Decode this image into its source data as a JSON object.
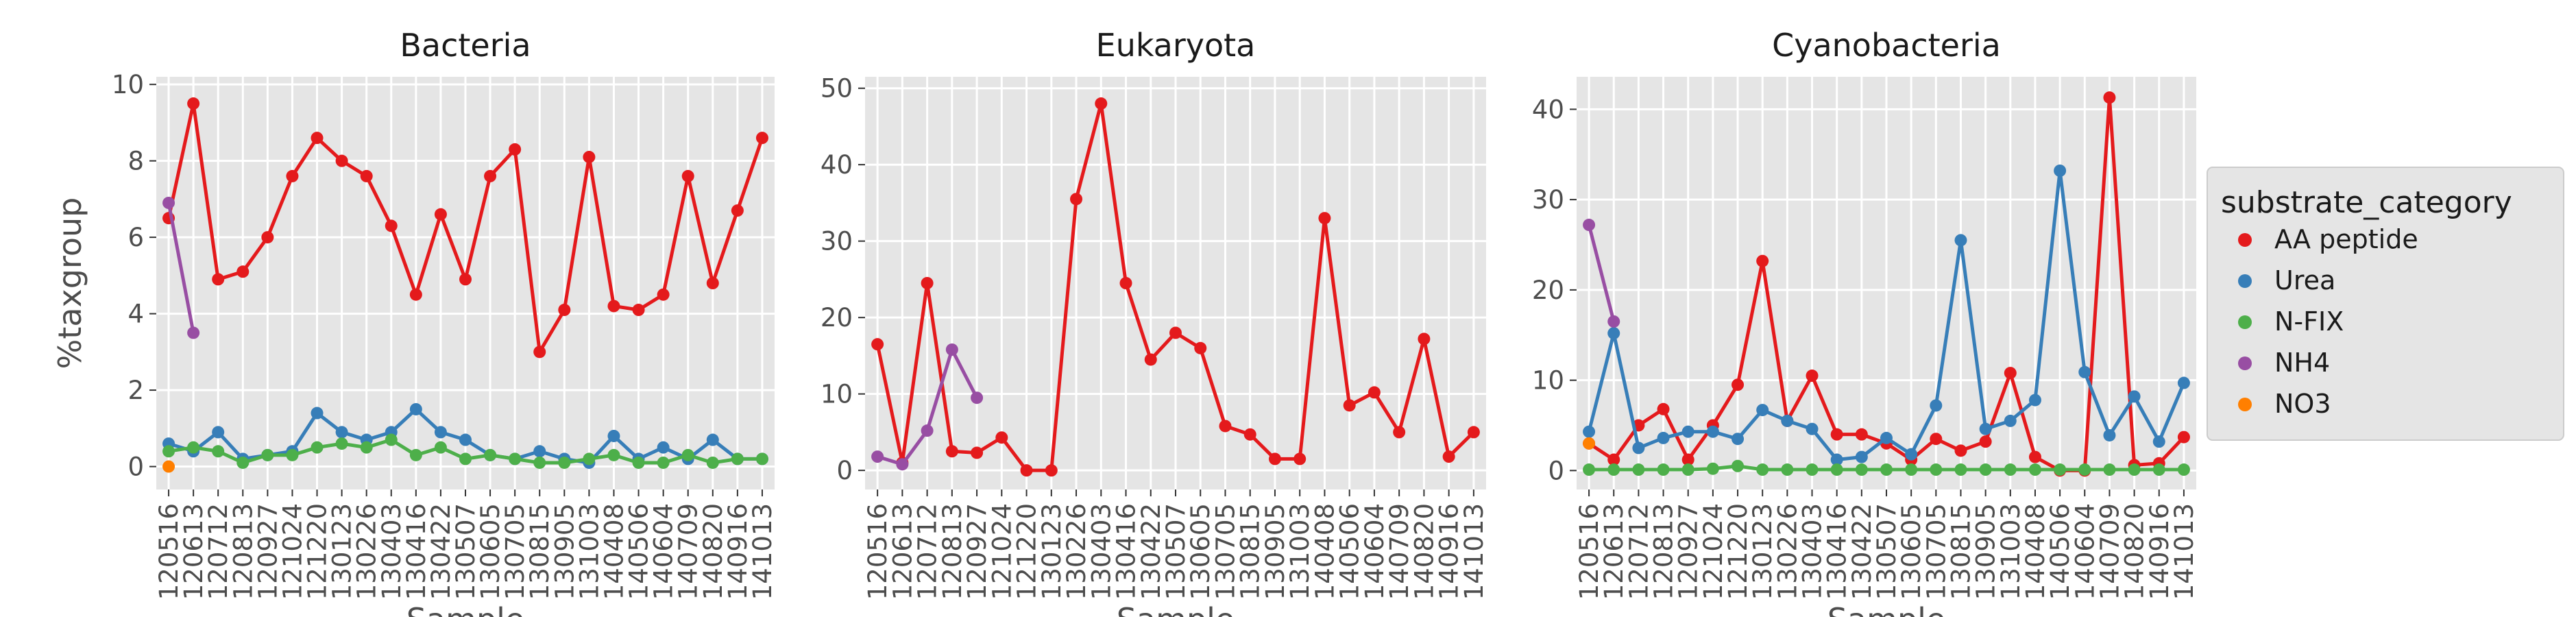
{
  "chart_data": [
    {
      "type": "line",
      "title": "Bacteria",
      "ylabel": "%taxgroup",
      "xlabel": "Sample",
      "ylim": [
        -0.6,
        10.2
      ],
      "yticks": [
        0,
        2,
        4,
        6,
        8,
        10
      ],
      "grid": true,
      "categories": [
        "120516",
        "120613",
        "120712",
        "120813",
        "120927",
        "121024",
        "121220",
        "130123",
        "130226",
        "130403",
        "130416",
        "130422",
        "130507",
        "130605",
        "130705",
        "130815",
        "130905",
        "131003",
        "140408",
        "140506",
        "140604",
        "140709",
        "140820",
        "140916",
        "141013"
      ],
      "series": [
        {
          "name": "AA peptide",
          "x": [
            0,
            1,
            2,
            3,
            4,
            5,
            6,
            7,
            8,
            9,
            10,
            11,
            12,
            13,
            14,
            15,
            16,
            17,
            18,
            19,
            20,
            21,
            22,
            23,
            24
          ],
          "values": [
            6.5,
            9.5,
            4.9,
            5.1,
            6.0,
            7.6,
            8.6,
            8.0,
            7.6,
            6.3,
            4.5,
            6.6,
            4.9,
            7.6,
            8.3,
            3.0,
            4.1,
            8.1,
            4.2,
            4.1,
            4.5,
            7.6,
            4.8,
            6.7,
            8.6
          ]
        },
        {
          "name": "Urea",
          "x": [
            0,
            1,
            2,
            3,
            4,
            5,
            6,
            7,
            8,
            9,
            10,
            11,
            12,
            13,
            14,
            15,
            16,
            17,
            18,
            19,
            20,
            21,
            22,
            23,
            24
          ],
          "values": [
            0.6,
            0.4,
            0.9,
            0.2,
            0.3,
            0.4,
            1.4,
            0.9,
            0.7,
            0.9,
            1.5,
            0.9,
            0.7,
            0.3,
            0.2,
            0.4,
            0.2,
            0.1,
            0.8,
            0.2,
            0.5,
            0.2,
            0.7,
            0.2,
            0.2
          ]
        },
        {
          "name": "N-FIX",
          "x": [
            0,
            1,
            2,
            3,
            4,
            5,
            6,
            7,
            8,
            9,
            10,
            11,
            12,
            13,
            14,
            15,
            16,
            17,
            18,
            19,
            20,
            21,
            22,
            23,
            24
          ],
          "values": [
            0.4,
            0.5,
            0.4,
            0.1,
            0.3,
            0.3,
            0.5,
            0.6,
            0.5,
            0.7,
            0.3,
            0.5,
            0.2,
            0.3,
            0.2,
            0.1,
            0.1,
            0.2,
            0.3,
            0.1,
            0.1,
            0.3,
            0.1,
            0.2,
            0.2
          ]
        },
        {
          "name": "NH4",
          "x": [
            0,
            1
          ],
          "values": [
            6.9,
            3.5
          ]
        },
        {
          "name": "NO3",
          "x": [
            0
          ],
          "values": [
            0.0
          ]
        }
      ]
    },
    {
      "type": "line",
      "title": "Eukaryota",
      "xlabel": "Sample",
      "ylim": [
        -2.5,
        51.5
      ],
      "yticks": [
        0,
        10,
        20,
        30,
        40,
        50
      ],
      "grid": true,
      "categories": [
        "120516",
        "120613",
        "120712",
        "120813",
        "120927",
        "121024",
        "121220",
        "130123",
        "130226",
        "130403",
        "130416",
        "130422",
        "130507",
        "130605",
        "130705",
        "130815",
        "130905",
        "131003",
        "140408",
        "140506",
        "140604",
        "140709",
        "140820",
        "140916",
        "141013"
      ],
      "series": [
        {
          "name": "AA peptide",
          "x": [
            0,
            1,
            2,
            3,
            4,
            5,
            6,
            7,
            8,
            9,
            10,
            11,
            12,
            13,
            14,
            15,
            16,
            17,
            18,
            19,
            20,
            21,
            22,
            23,
            24
          ],
          "values": [
            16.5,
            1.0,
            24.5,
            2.5,
            2.3,
            4.3,
            0.0,
            0.0,
            35.5,
            48.0,
            24.5,
            14.5,
            18.0,
            16.0,
            5.8,
            4.7,
            1.5,
            1.5,
            33.0,
            8.5,
            10.2,
            5.0,
            17.2,
            1.8,
            5.0
          ]
        },
        {
          "name": "NH4",
          "x": [
            0,
            1,
            2,
            3,
            4
          ],
          "values": [
            1.8,
            0.8,
            5.2,
            15.8,
            9.5
          ]
        }
      ]
    },
    {
      "type": "line",
      "title": "Cyanobacteria",
      "xlabel": "Sample",
      "ylim": [
        -2.1,
        43.6
      ],
      "yticks": [
        0,
        10,
        20,
        30,
        40
      ],
      "grid": true,
      "categories": [
        "120516",
        "120613",
        "120712",
        "120813",
        "120927",
        "121024",
        "121220",
        "130123",
        "130226",
        "130403",
        "130416",
        "130422",
        "130507",
        "130605",
        "130705",
        "130815",
        "130905",
        "131003",
        "140408",
        "140506",
        "140604",
        "140709",
        "140820",
        "140916",
        "141013"
      ],
      "series": [
        {
          "name": "AA peptide",
          "x": [
            0,
            1,
            2,
            3,
            4,
            5,
            6,
            7,
            8,
            9,
            10,
            11,
            12,
            13,
            14,
            15,
            16,
            17,
            18,
            19,
            20,
            21,
            22,
            23,
            24
          ],
          "values": [
            3.0,
            1.2,
            5.0,
            6.8,
            1.2,
            5.0,
            9.5,
            23.2,
            5.5,
            10.5,
            4.0,
            4.0,
            3.0,
            1.2,
            3.5,
            2.2,
            3.2,
            10.8,
            1.5,
            0.0,
            0.0,
            41.3,
            0.6,
            0.8,
            3.7
          ]
        },
        {
          "name": "Urea",
          "x": [
            0,
            1,
            2,
            3,
            4,
            5,
            6,
            7,
            8,
            9,
            10,
            11,
            12,
            13,
            14,
            15,
            16,
            17,
            18,
            19,
            20,
            21,
            22,
            23,
            24
          ],
          "values": [
            4.3,
            15.2,
            2.5,
            3.6,
            4.3,
            4.3,
            3.5,
            6.7,
            5.5,
            4.6,
            1.2,
            1.5,
            3.6,
            1.8,
            7.2,
            25.5,
            4.6,
            5.5,
            7.8,
            33.2,
            10.9,
            3.9,
            8.2,
            3.2,
            9.7
          ]
        },
        {
          "name": "N-FIX",
          "x": [
            0,
            1,
            2,
            3,
            4,
            5,
            6,
            7,
            8,
            9,
            10,
            11,
            12,
            13,
            14,
            15,
            16,
            17,
            18,
            19,
            20,
            21,
            22,
            23,
            24
          ],
          "values": [
            0.1,
            0.1,
            0.1,
            0.1,
            0.1,
            0.2,
            0.5,
            0.1,
            0.1,
            0.1,
            0.1,
            0.1,
            0.1,
            0.1,
            0.1,
            0.1,
            0.1,
            0.1,
            0.1,
            0.1,
            0.1,
            0.1,
            0.1,
            0.1,
            0.1
          ]
        },
        {
          "name": "NH4",
          "x": [
            0,
            1
          ],
          "values": [
            27.2,
            16.5
          ]
        },
        {
          "name": "NO3",
          "x": [
            0
          ],
          "values": [
            3.0
          ]
        }
      ]
    }
  ],
  "legend": {
    "title": "substrate_category",
    "placement": "right",
    "entries": [
      {
        "label": "AA peptide",
        "color": "#e41a1c"
      },
      {
        "label": "Urea",
        "color": "#377eb8"
      },
      {
        "label": "N-FIX",
        "color": "#4daf4a"
      },
      {
        "label": "NH4",
        "color": "#984ea3"
      },
      {
        "label": "NO3",
        "color": "#ff7f00"
      }
    ]
  },
  "colors": {
    "AA peptide": "#e41a1c",
    "Urea": "#377eb8",
    "N-FIX": "#4daf4a",
    "NH4": "#984ea3",
    "NO3": "#ff7f00",
    "panel_background": "#e5e5e5",
    "grid": "#ffffff"
  }
}
